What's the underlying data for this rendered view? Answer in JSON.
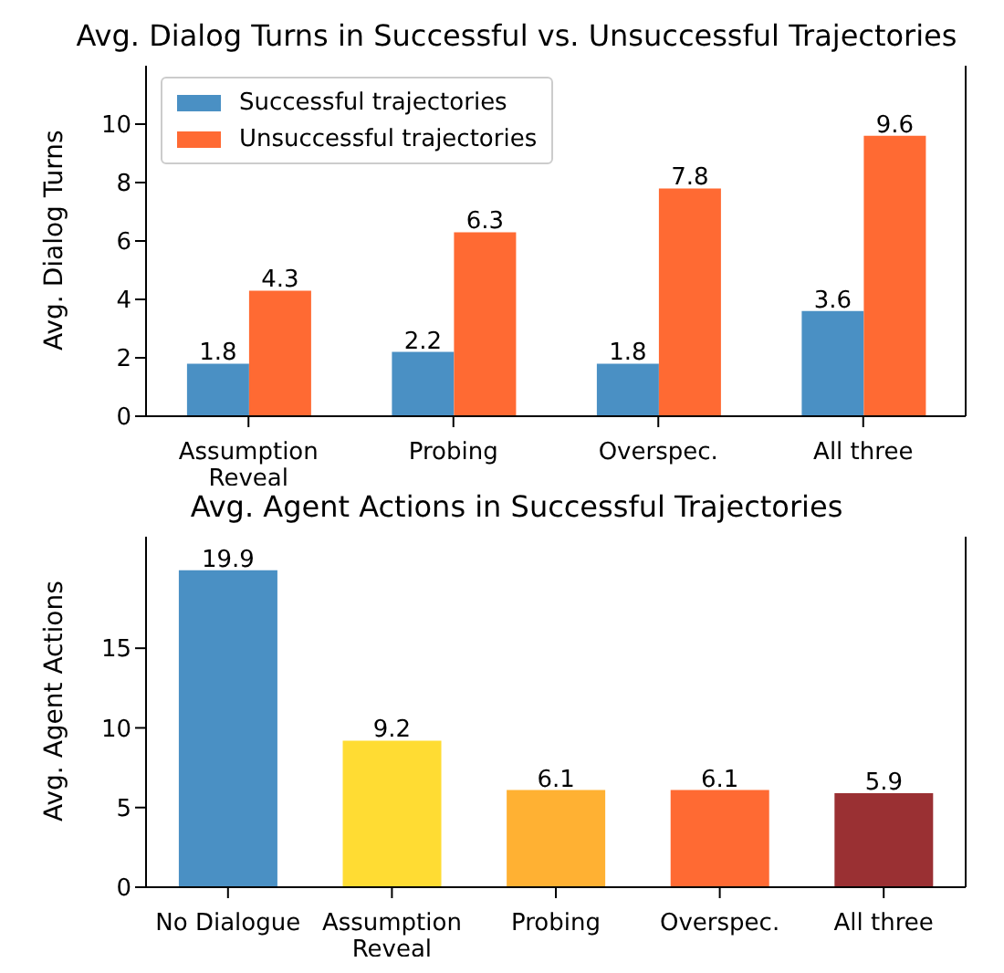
{
  "chart_data": [
    {
      "type": "bar",
      "title": "Avg. Dialog Turns in Successful vs. Unsuccessful Trajectories",
      "ylabel": "Avg. Dialog Turns",
      "categories": [
        "Assumption\nReveal",
        "Probing",
        "Overspec.",
        "All three"
      ],
      "series": [
        {
          "name": "Successful trajectories",
          "color": "#4a90c4",
          "values": [
            1.8,
            2.2,
            1.8,
            3.6
          ]
        },
        {
          "name": "Unsuccessful trajectories",
          "color": "#ff6a33",
          "values": [
            4.3,
            6.3,
            7.8,
            9.6
          ]
        }
      ],
      "ylim": [
        0,
        12
      ],
      "yticks": [
        0,
        2,
        4,
        6,
        8,
        10
      ],
      "data_labels": true,
      "legend": "top left",
      "grid": false
    },
    {
      "type": "bar",
      "title": "Avg. Agent Actions in Successful Trajectories",
      "ylabel": "Avg. Agent Actions",
      "categories": [
        "No Dialogue",
        "Assumption\nReveal",
        "Probing",
        "Overspec.",
        "All three"
      ],
      "values": [
        19.9,
        9.2,
        6.1,
        6.1,
        5.9
      ],
      "colors": [
        "#4a90c4",
        "#ffdc33",
        "#ffb133",
        "#ff6a33",
        "#9a3033"
      ],
      "ylim": [
        0,
        22
      ],
      "yticks": [
        0,
        5,
        10,
        15
      ],
      "data_labels": true,
      "grid": false
    }
  ]
}
